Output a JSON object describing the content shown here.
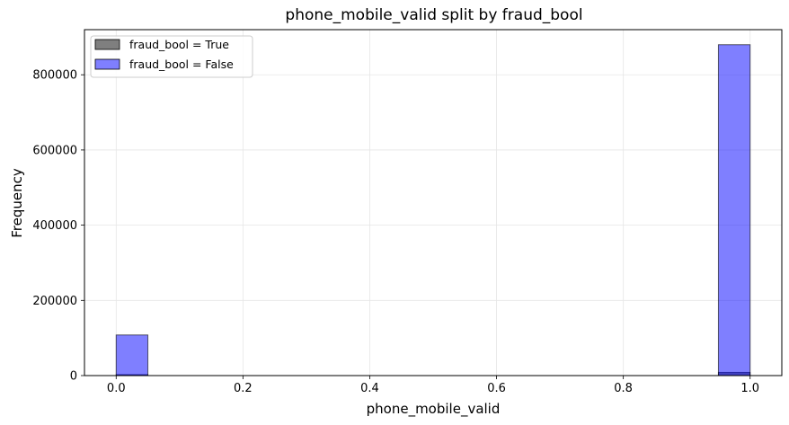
{
  "chart_data": {
    "type": "bar",
    "title": "phone_mobile_valid split by fraud_bool",
    "xlabel": "phone_mobile_valid",
    "ylabel": "Frequency",
    "xlim": [
      -0.05,
      1.05
    ],
    "ylim": [
      0,
      920000
    ],
    "xticks": [
      "0.0",
      "0.2",
      "0.4",
      "0.6",
      "0.8",
      "1.0"
    ],
    "xtick_values": [
      0.0,
      0.2,
      0.4,
      0.6,
      0.8,
      1.0
    ],
    "yticks": [
      "0",
      "200000",
      "400000",
      "600000",
      "800000"
    ],
    "ytick_values": [
      0,
      200000,
      400000,
      600000,
      800000
    ],
    "bin_width": 0.05,
    "grid": true,
    "legend_position": "top-left",
    "series": [
      {
        "name": "fraud_bool = True",
        "color": "#000000",
        "bins": [
          {
            "x0": 0.0,
            "x1": 0.05,
            "value": 2500
          },
          {
            "x0": 0.95,
            "x1": 1.0,
            "value": 8500
          }
        ]
      },
      {
        "name": "fraud_bool = False",
        "color": "#0000ff",
        "bins": [
          {
            "x0": 0.0,
            "x1": 0.05,
            "value": 108000
          },
          {
            "x0": 0.95,
            "x1": 1.0,
            "value": 880000
          }
        ]
      }
    ]
  }
}
